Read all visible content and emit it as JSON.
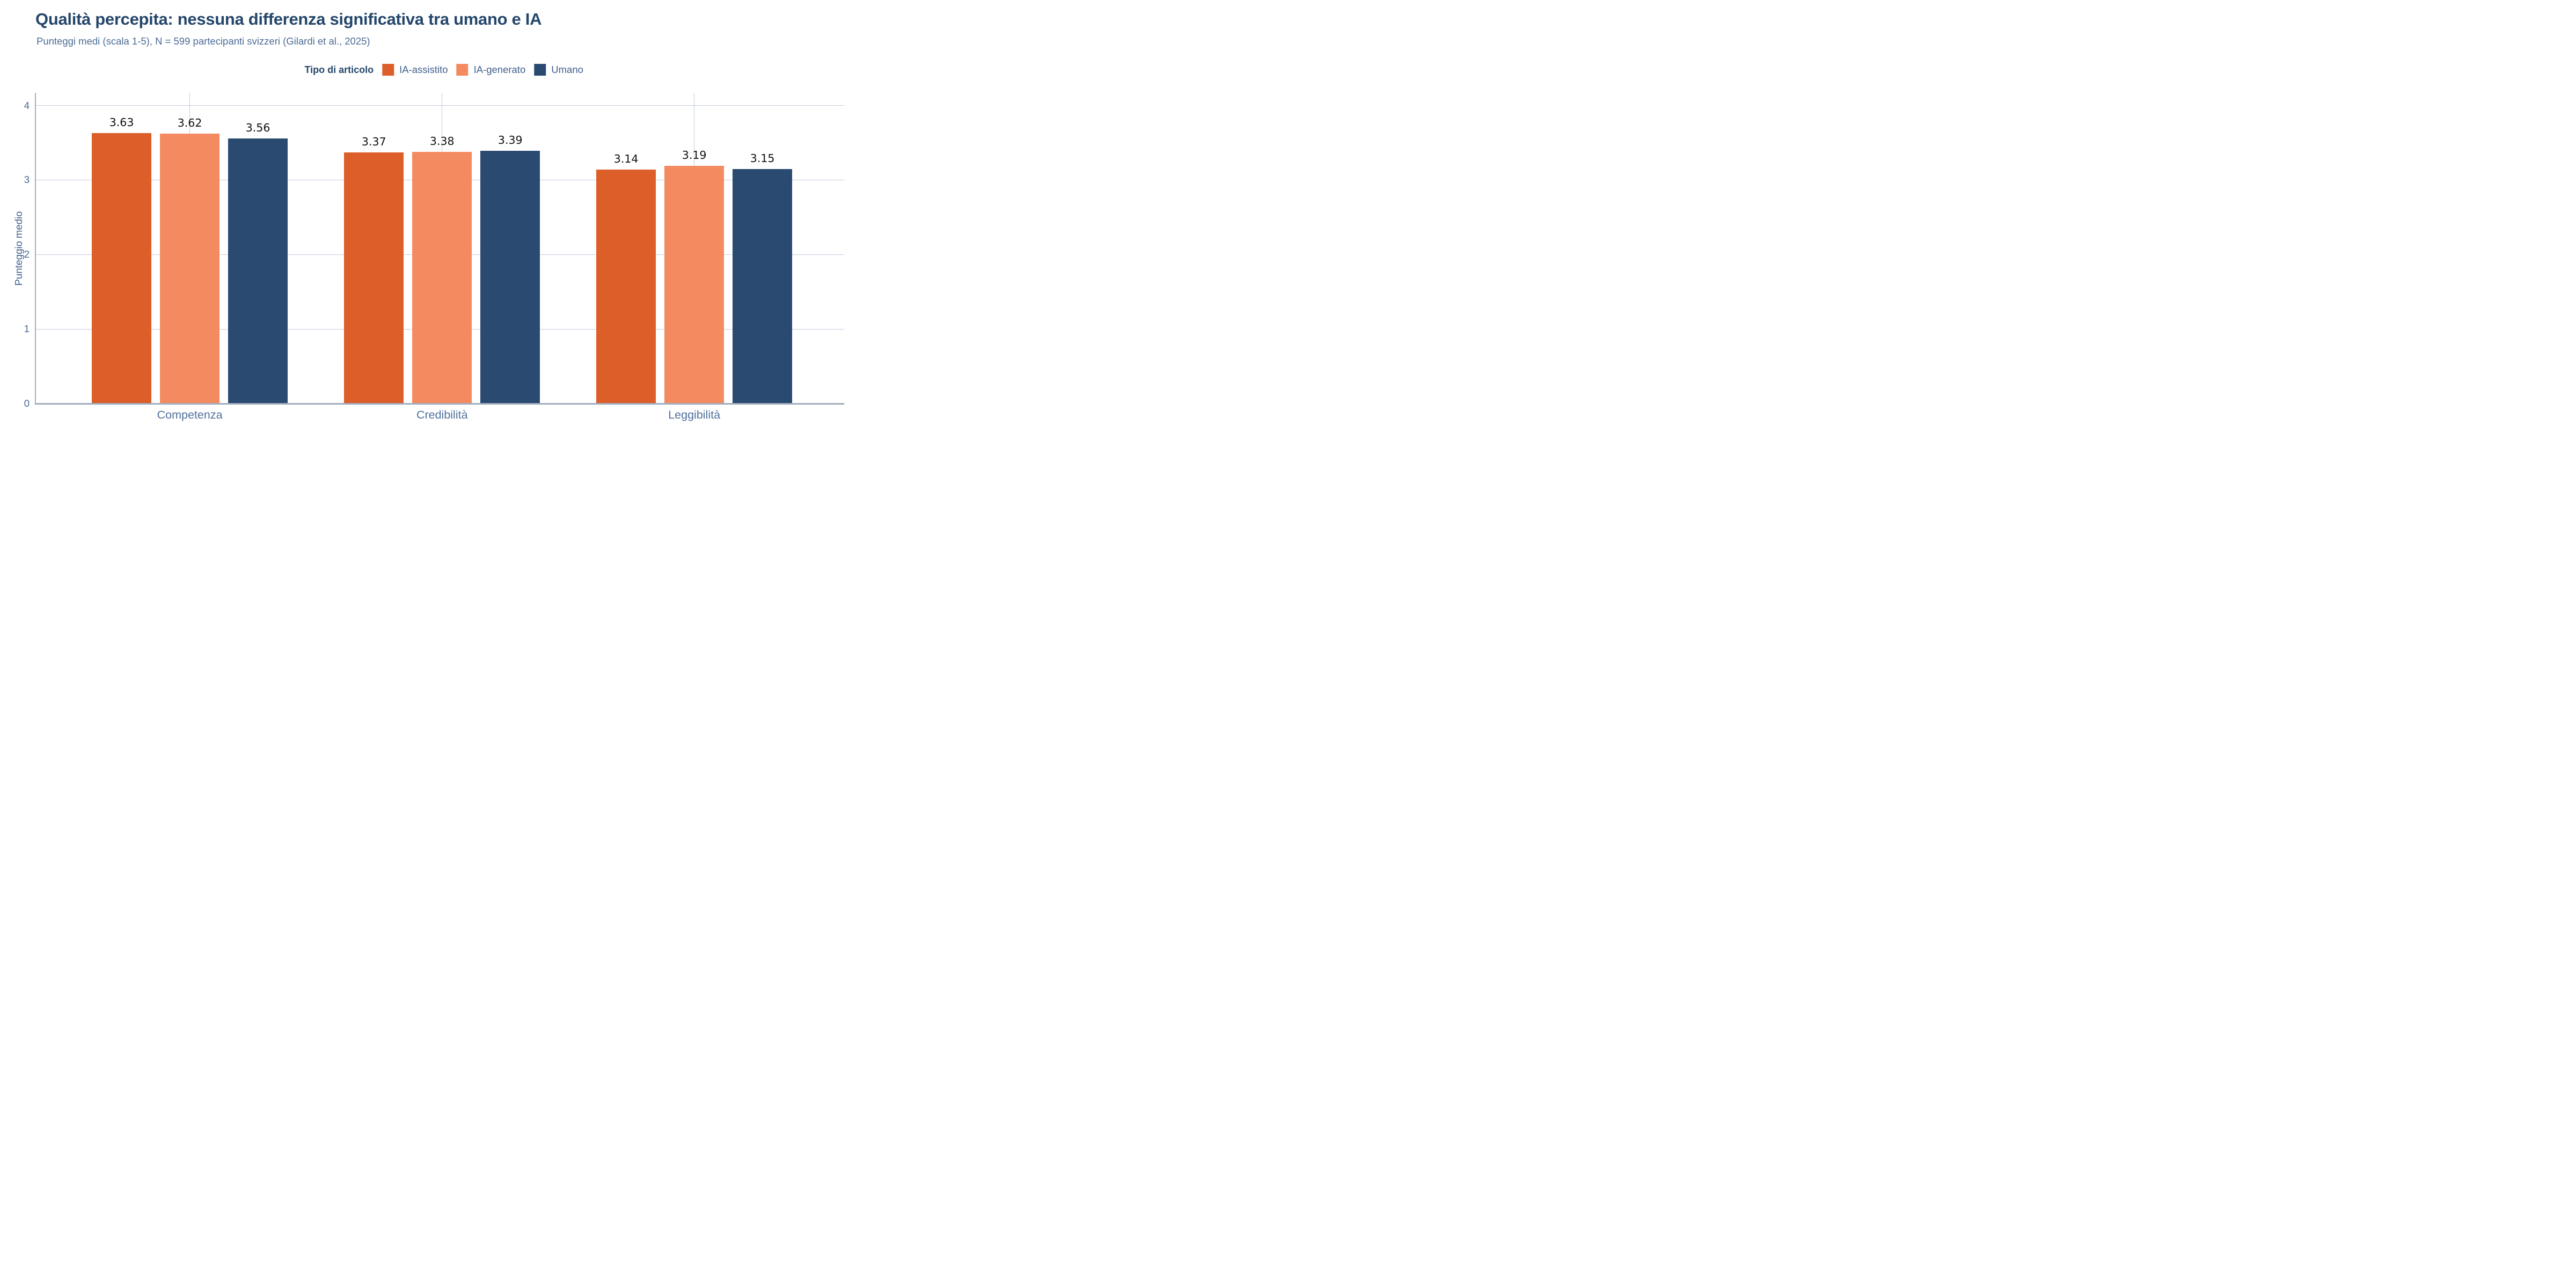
{
  "header": {
    "title": "Qualità percepita: nessuna differenza significativa tra umano e IA",
    "subtitle": "Punteggi medi (scala 1-5), N = 599 partecipanti svizzeri (Gilardi et al., 2025)"
  },
  "legend": {
    "title": "Tipo di articolo",
    "items": [
      {
        "label": "IA-assistito",
        "color": "#DC5E29"
      },
      {
        "label": "IA-generato",
        "color": "#F48B60"
      },
      {
        "label": "Umano",
        "color": "#2A4A72"
      }
    ]
  },
  "y_axis": {
    "label": "Punteggio medio",
    "ticks": [
      0,
      1,
      2,
      3,
      4
    ],
    "max_value": 4.17
  },
  "chart_data": {
    "type": "bar",
    "title": "Qualità percepita: nessuna differenza significativa tra umano e IA",
    "subtitle": "Punteggi medi (scala 1-5), N = 599 partecipanti svizzeri (Gilardi et al., 2025)",
    "categories": [
      "Competenza",
      "Credibilità",
      "Leggibilità"
    ],
    "series": [
      {
        "name": "IA-assistito",
        "color": "#DC5E29",
        "values": [
          3.63,
          3.37,
          3.14
        ]
      },
      {
        "name": "IA-generato",
        "color": "#F48B60",
        "values": [
          3.62,
          3.38,
          3.19
        ]
      },
      {
        "name": "Umano",
        "color": "#2A4A72",
        "values": [
          3.56,
          3.39,
          3.15
        ]
      }
    ],
    "xlabel": "",
    "ylabel": "Punteggio medio",
    "ylim": [
      0,
      4.2
    ],
    "grid": true,
    "legend_title": "Tipo di articolo",
    "legend_position": "top-center",
    "value_labels": true
  },
  "colors": {
    "background": "#FFFFFF",
    "title": "#24466B",
    "subtitle": "#4C6C96",
    "tick_label": "#4A6A94",
    "axis_label": "#40608D",
    "category_label": "#50709B",
    "gridline": "#C4CDDB",
    "axis_line": "#A2AEC0",
    "value_label": "#111111"
  }
}
